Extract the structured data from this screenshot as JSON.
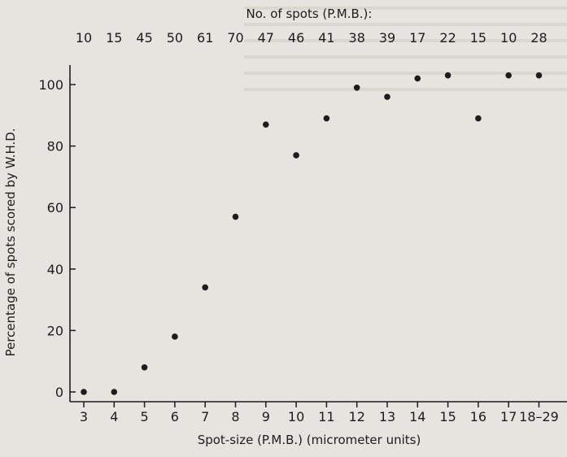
{
  "chart_data": {
    "type": "scatter",
    "title": "",
    "xlabel": "Spot-size (P.M.B.) (micrometer units)",
    "ylabel": "Percentage of spots scored by W.H.D.",
    "top_axis_label": "No. of spots (P.M.B.):",
    "categories": [
      "3",
      "4",
      "5",
      "6",
      "7",
      "8",
      "9",
      "10",
      "11",
      "12",
      "13",
      "14",
      "15",
      "16",
      "17",
      "18–29"
    ],
    "spot_counts": [
      "10",
      "15",
      "45",
      "50",
      "61",
      "70",
      "47",
      "46",
      "41",
      "38",
      "39",
      "17",
      "22",
      "15",
      "10",
      "28"
    ],
    "values": [
      0,
      0,
      8,
      18,
      34,
      57,
      87,
      77,
      89,
      99,
      96,
      102,
      103,
      89,
      103,
      103
    ],
    "ylim": [
      0,
      106
    ],
    "yticks": [
      0,
      20,
      40,
      60,
      80,
      100
    ],
    "grid": false,
    "colors": {
      "background": "#e6e4df",
      "ink": "#1c1c1c"
    }
  }
}
